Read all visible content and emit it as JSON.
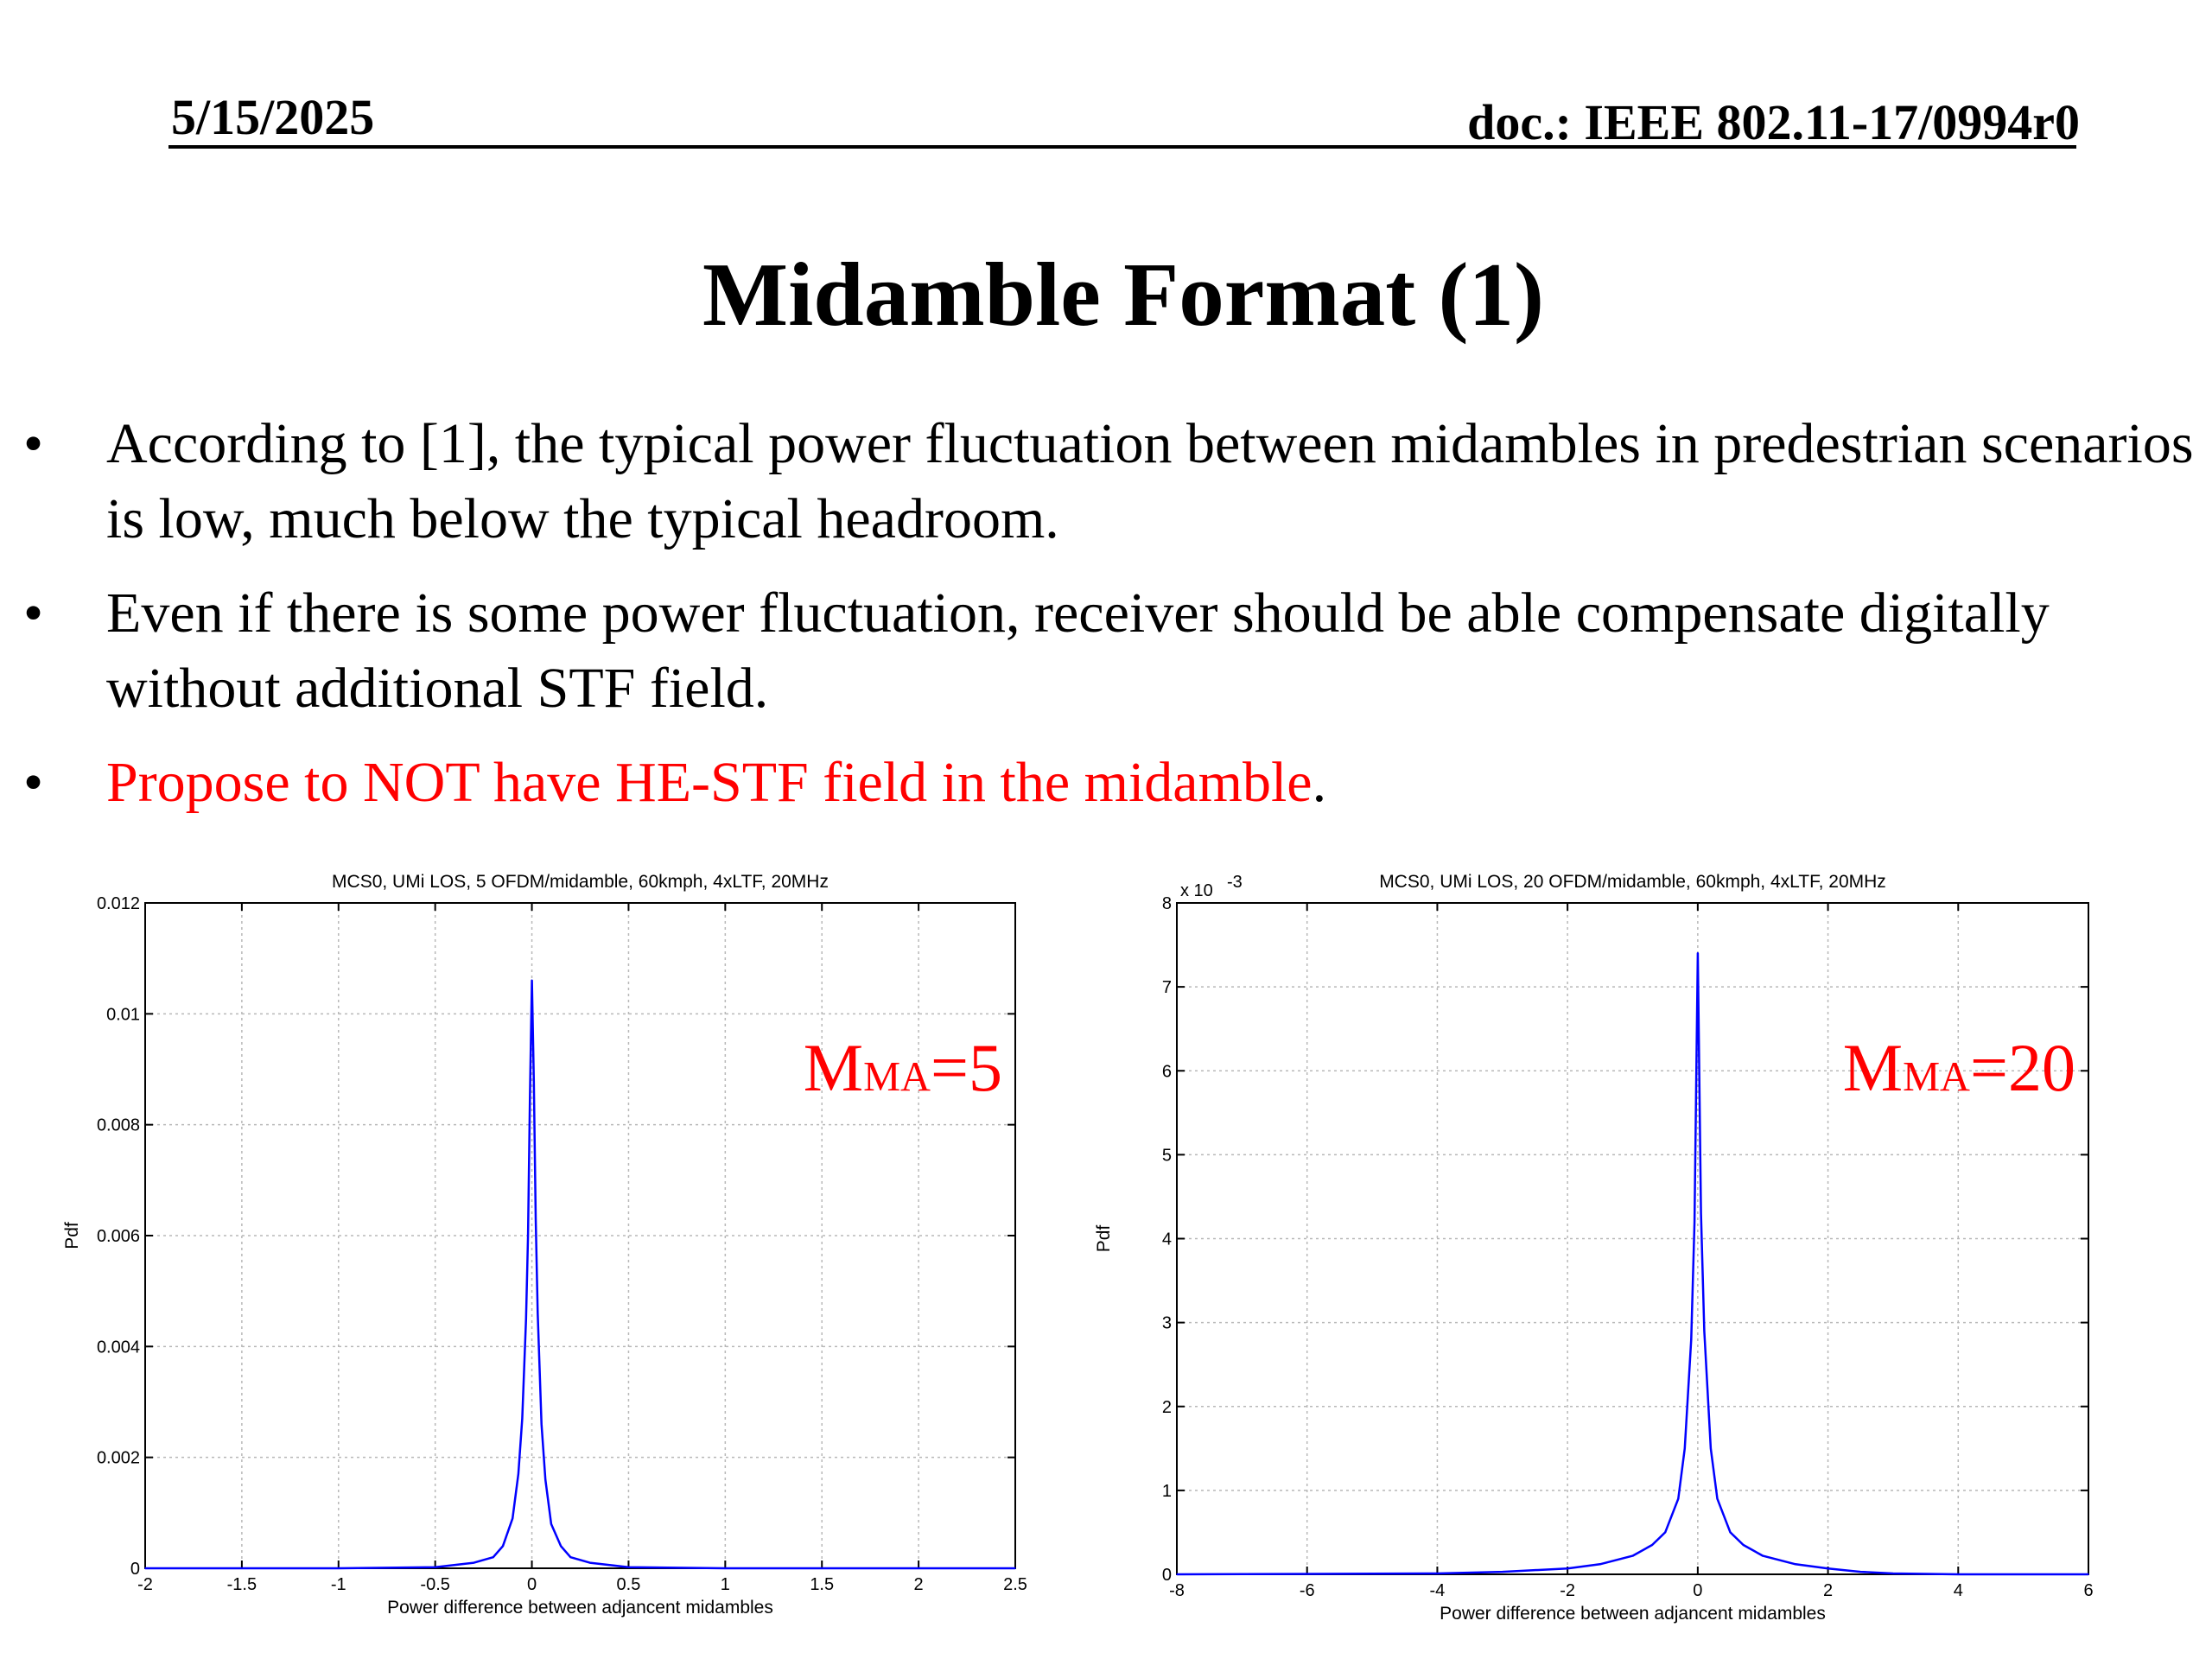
{
  "header": {
    "date": "5/15/2025",
    "doc": "doc.: IEEE 802.11-17/0994r0"
  },
  "slide": {
    "title": "Midamble Format (1)",
    "bullets": [
      {
        "text": "According to [1], the typical power fluctuation between midambles in predestrian scenarios is low, much below the typical headroom.",
        "red": "",
        "tail": ""
      },
      {
        "text": "Even if there is some power fluctuation, receiver should be able compensate digitally without additional STF field.",
        "red": "",
        "tail": ""
      },
      {
        "text": "",
        "red": "Propose to NOT have HE-STF field in the midamble",
        "tail": "."
      }
    ],
    "bullet_symbol": "•"
  },
  "chart_data": [
    {
      "type": "line",
      "title": "MCS0, UMi LOS, 5 OFDM/midamble, 60kmph, 4xLTF, 20MHz",
      "xlabel": "Power difference between adjancent midambles",
      "ylabel": "Pdf",
      "xlim": [
        -2,
        2.5
      ],
      "ylim": [
        0,
        0.012
      ],
      "xticks": [
        "-2",
        "-1.5",
        "-1",
        "-0.5",
        "0",
        "0.5",
        "1",
        "1.5",
        "2",
        "2.5"
      ],
      "yticks": [
        "0",
        "0.002",
        "0.004",
        "0.006",
        "0.008",
        "0.01",
        "0.012"
      ],
      "y_exponent": "",
      "grid": true,
      "series_color": "#0000ff",
      "annotation": {
        "main": "M",
        "sub": "MA",
        "value": "=5"
      },
      "series": [
        {
          "x": [
            -2,
            -1,
            -0.5,
            -0.3,
            -0.2,
            -0.15,
            -0.1,
            -0.07,
            -0.05,
            -0.03,
            -0.02,
            -0.01,
            0,
            0.01,
            0.02,
            0.03,
            0.05,
            0.07,
            0.1,
            0.15,
            0.2,
            0.3,
            0.5,
            1,
            2,
            2.5
          ],
          "y": [
            0,
            0,
            2e-05,
            0.0001,
            0.0002,
            0.0004,
            0.0009,
            0.0017,
            0.0027,
            0.0045,
            0.006,
            0.0085,
            0.0106,
            0.0088,
            0.0063,
            0.0046,
            0.0026,
            0.0016,
            0.0008,
            0.0004,
            0.0002,
            0.0001,
            2e-05,
            0,
            0,
            0
          ]
        }
      ]
    },
    {
      "type": "line",
      "title": "MCS0, UMi LOS, 20 OFDM/midamble, 60kmph, 4xLTF, 20MHz",
      "xlabel": "Power difference between adjancent midambles",
      "ylabel": "Pdf",
      "xlim": [
        -8,
        6
      ],
      "ylim": [
        0,
        8
      ],
      "xticks": [
        "-8",
        "-6",
        "-4",
        "-2",
        "0",
        "2",
        "4",
        "6"
      ],
      "yticks": [
        "0",
        "1",
        "2",
        "3",
        "4",
        "5",
        "6",
        "7",
        "8"
      ],
      "y_exponent": "x 10",
      "y_exponent_power": "-3",
      "grid": true,
      "series_color": "#0000ff",
      "annotation": {
        "main": "M",
        "sub": "MA",
        "value": "=20"
      },
      "series": [
        {
          "x": [
            -8,
            -4,
            -3,
            -2,
            -1.5,
            -1,
            -0.7,
            -0.5,
            -0.3,
            -0.2,
            -0.1,
            -0.05,
            0,
            0.05,
            0.1,
            0.2,
            0.3,
            0.5,
            0.7,
            1,
            1.5,
            2,
            2.5,
            3,
            4,
            6
          ],
          "y": [
            0,
            0.01,
            0.03,
            0.07,
            0.12,
            0.22,
            0.35,
            0.5,
            0.9,
            1.5,
            2.8,
            4.2,
            7.4,
            4.3,
            2.9,
            1.5,
            0.9,
            0.5,
            0.35,
            0.22,
            0.12,
            0.07,
            0.03,
            0.01,
            0,
            0
          ]
        }
      ]
    }
  ]
}
